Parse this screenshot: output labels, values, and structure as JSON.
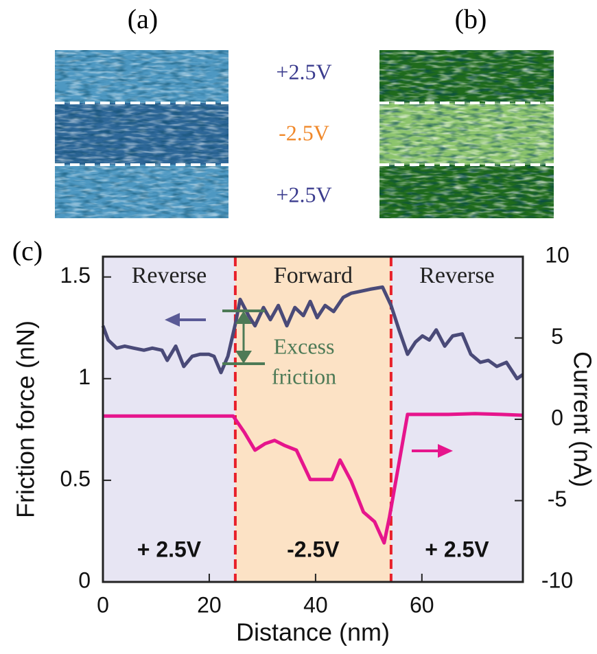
{
  "panel_labels": [
    "(a)",
    "(b)",
    "(c)"
  ],
  "bias_labels": [
    "+2.5V",
    "-2.5V",
    "+2.5V"
  ],
  "chart_data": {
    "type": "line",
    "xlabel": "Distance (nm)",
    "ylabel": "Friction force (nN)",
    "y2label": "Current (nA)",
    "xlim": [
      0,
      79
    ],
    "xticks": [
      0,
      20,
      40,
      60
    ],
    "ylim": [
      0,
      1.6
    ],
    "yticks": [
      0,
      0.5,
      1,
      1.5
    ],
    "y2lim": [
      -10,
      10
    ],
    "y2ticks": [
      -10,
      -5,
      0,
      5,
      10
    ],
    "boundary_color": "#e8202a",
    "regions": [
      {
        "label": "Reverse",
        "bias": "+ 2.5V",
        "color": "#e7e5f3",
        "bounds": [
          0,
          24.9
        ]
      },
      {
        "label": "Forward",
        "bias": "-2.5V",
        "color": "#fce2c5",
        "bounds": [
          24.9,
          54.2
        ]
      },
      {
        "label": "Reverse",
        "bias": "+ 2.5V",
        "color": "#e7e5f3",
        "bounds": [
          54.2,
          79
        ]
      }
    ],
    "annotation_lines": [
      "Excess",
      "friction"
    ],
    "series": [
      {
        "color": "#4a4a78",
        "x": [
          0,
          1,
          2.6,
          4.1,
          5.8,
          7.7,
          9.3,
          11.1,
          12.1,
          13.7,
          15.2,
          16.8,
          18.3,
          19.9,
          20.9,
          22.2,
          23.5,
          25,
          25.8,
          27.4,
          28.6,
          30.2,
          31.5,
          33,
          34.6,
          36.1,
          37.7,
          39,
          40.3,
          41.8,
          43.4,
          45.2,
          46.7,
          48.5,
          50.3,
          52.6,
          54.2,
          55.7,
          57.3,
          58.8,
          60.1,
          61.4,
          62.7,
          64.3,
          65.8,
          67.6,
          69.2,
          71,
          72.5,
          74.1,
          75.9,
          77.9,
          79
        ],
        "values": [
          1.26,
          1.19,
          1.15,
          1.16,
          1.15,
          1.14,
          1.15,
          1.14,
          1.09,
          1.16,
          1.06,
          1.11,
          1.12,
          1.12,
          1.11,
          1.03,
          1.11,
          1.28,
          1.39,
          1.31,
          1.26,
          1.35,
          1.29,
          1.36,
          1.26,
          1.35,
          1.31,
          1.38,
          1.3,
          1.36,
          1.33,
          1.4,
          1.42,
          1.43,
          1.44,
          1.45,
          1.36,
          1.24,
          1.12,
          1.18,
          1.21,
          1.19,
          1.24,
          1.16,
          1.21,
          1.22,
          1.12,
          1.08,
          1.09,
          1.06,
          1.08,
          1.0,
          1.02
        ]
      },
      {
        "color": "#e6158c",
        "axis": "y2",
        "x": [
          0,
          10,
          20,
          24.5,
          26.6,
          28.6,
          30.5,
          32.3,
          34.1,
          36.4,
          39,
          41,
          43.1,
          44.6,
          46.7,
          49,
          51.1,
          52.9,
          53.9,
          57.3,
          65,
          70,
          75,
          79
        ],
        "values": [
          0.2,
          0.2,
          0.2,
          0.2,
          -0.8,
          -1.9,
          -1.5,
          -1.3,
          -1.6,
          -1.9,
          -3.7,
          -3.7,
          -3.7,
          -2.5,
          -3.8,
          -5.7,
          -6.3,
          -7.6,
          -6.0,
          0.3,
          0.3,
          0.35,
          0.3,
          0.25
        ]
      }
    ]
  }
}
